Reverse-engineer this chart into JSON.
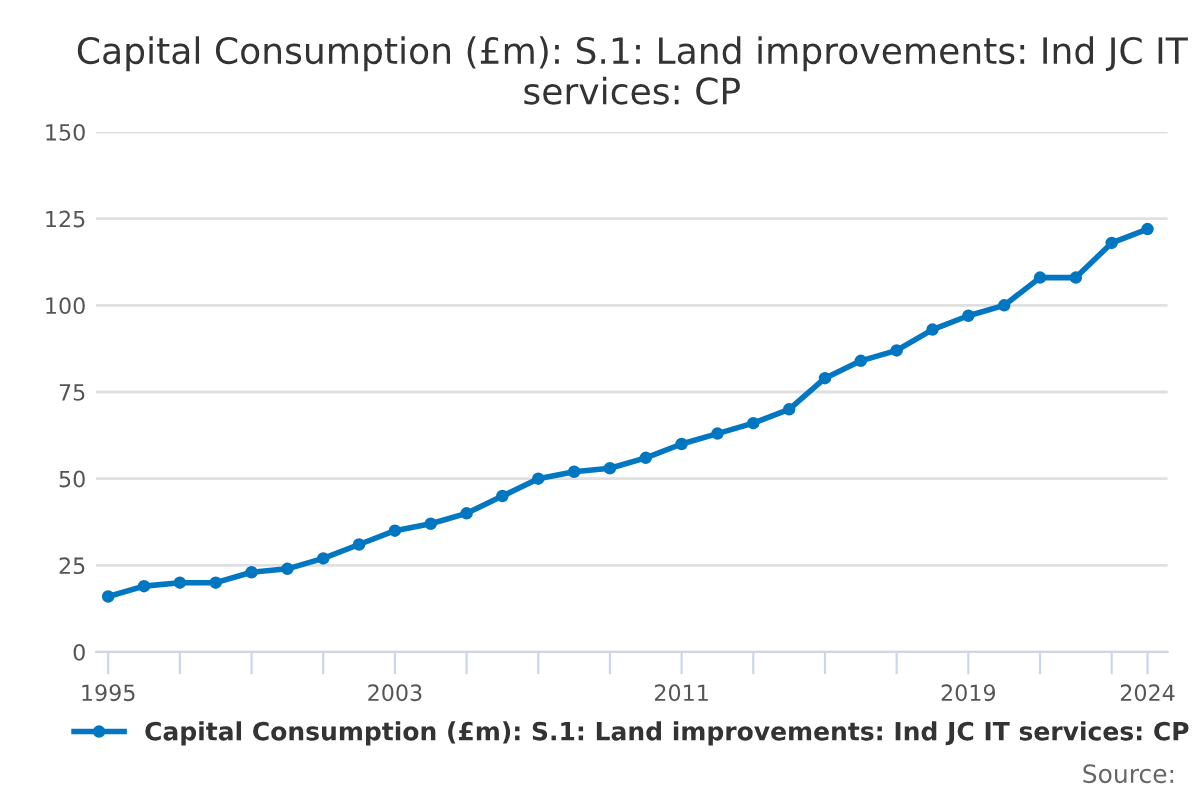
{
  "chart_data": {
    "type": "line",
    "title": "Capital Consumption (£m): S.1: Land improvements: Ind JC IT services: CP",
    "x": [
      1995,
      1996,
      1997,
      1998,
      1999,
      2000,
      2001,
      2002,
      2003,
      2004,
      2005,
      2006,
      2007,
      2008,
      2009,
      2010,
      2011,
      2012,
      2013,
      2014,
      2015,
      2016,
      2017,
      2018,
      2019,
      2020,
      2021,
      2022,
      2023,
      2024
    ],
    "series": [
      {
        "name": "Capital Consumption (£m): S.1: Land improvements: Ind JC IT services: CP",
        "color": "#0077c0",
        "values": [
          16,
          19,
          20,
          20,
          23,
          24,
          27,
          31,
          35,
          37,
          40,
          45,
          50,
          52,
          53,
          56,
          60,
          63,
          66,
          70,
          79,
          84,
          87,
          93,
          97,
          100,
          108,
          108,
          118,
          122
        ]
      }
    ],
    "xlim": [
      1994.66,
      2024.56
    ],
    "xticks": [
      1995,
      {
        "value": 1997,
        "label": null
      },
      {
        "value": 1999,
        "label": null
      },
      {
        "value": 2001,
        "label": null
      },
      2003,
      {
        "value": 2005,
        "label": null
      },
      {
        "value": 2007,
        "label": null
      },
      {
        "value": 2009,
        "label": null
      },
      2011,
      {
        "value": 2013,
        "label": null
      },
      {
        "value": 2015,
        "label": null
      },
      {
        "value": 2017,
        "label": null
      },
      2019,
      {
        "value": 2021,
        "label": null
      },
      {
        "value": 2023,
        "label": null
      },
      2024
    ],
    "ylim": [
      0,
      150
    ],
    "yticks": [
      0,
      25,
      50,
      75,
      100,
      125,
      150
    ],
    "grid": "y",
    "legend": "bottom",
    "marker": "circle",
    "line_style": "solid",
    "annotations": [
      "Source:"
    ]
  }
}
